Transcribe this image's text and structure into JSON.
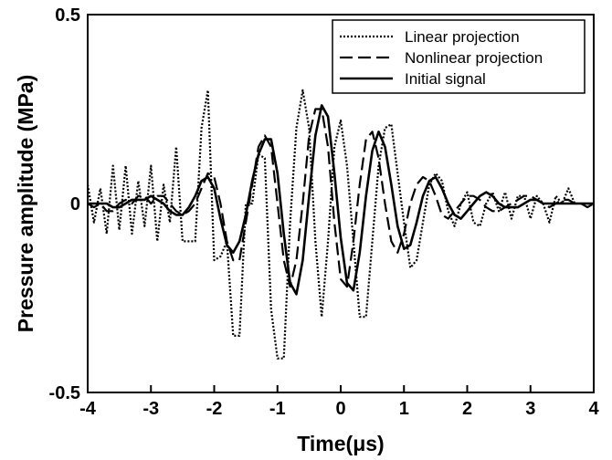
{
  "chart_data": {
    "type": "line",
    "title": "",
    "xlabel": "Time(μs)",
    "ylabel": "Pressure amplitude (MPa)",
    "xlim": [
      -4,
      4
    ],
    "ylim": [
      -0.5,
      0.5
    ],
    "x_ticks": [
      "-4",
      "-3",
      "-2",
      "-1",
      "0",
      "1",
      "2",
      "3",
      "4"
    ],
    "y_ticks": [
      "-0.5",
      "0",
      "0.5"
    ],
    "grid": false,
    "legend_position": "top-right",
    "series": [
      {
        "name": "Linear projection",
        "style": "dotted",
        "color": "#000000",
        "x": [
          -4.0,
          -3.9,
          -3.8,
          -3.7,
          -3.6,
          -3.5,
          -3.4,
          -3.3,
          -3.2,
          -3.1,
          -3.0,
          -2.9,
          -2.8,
          -2.7,
          -2.6,
          -2.5,
          -2.4,
          -2.3,
          -2.2,
          -2.1,
          -2.0,
          -1.9,
          -1.8,
          -1.7,
          -1.6,
          -1.5,
          -1.4,
          -1.3,
          -1.2,
          -1.1,
          -1.0,
          -0.9,
          -0.8,
          -0.7,
          -0.6,
          -0.5,
          -0.4,
          -0.3,
          -0.2,
          -0.1,
          0.0,
          0.1,
          0.2,
          0.3,
          0.4,
          0.5,
          0.6,
          0.7,
          0.8,
          0.9,
          1.0,
          1.1,
          1.2,
          1.3,
          1.4,
          1.5,
          1.6,
          1.7,
          1.8,
          1.9,
          2.0,
          2.1,
          2.2,
          2.3,
          2.4,
          2.5,
          2.6,
          2.7,
          2.8,
          2.9,
          3.0,
          3.1,
          3.2,
          3.3,
          3.4,
          3.5,
          3.6,
          3.7,
          3.8,
          3.9,
          4.0
        ],
        "y": [
          0.05,
          -0.05,
          0.04,
          -0.08,
          0.1,
          -0.07,
          0.1,
          -0.08,
          0.06,
          -0.06,
          0.1,
          -0.1,
          0.05,
          -0.05,
          0.15,
          -0.1,
          -0.1,
          -0.1,
          0.2,
          0.3,
          -0.15,
          -0.14,
          -0.1,
          -0.35,
          -0.35,
          0.0,
          0.0,
          0.13,
          0.12,
          -0.28,
          -0.41,
          -0.41,
          -0.05,
          0.2,
          0.3,
          0.2,
          -0.1,
          -0.3,
          -0.1,
          0.15,
          0.22,
          0.1,
          -0.1,
          -0.3,
          -0.3,
          -0.1,
          0.1,
          0.2,
          0.21,
          0.08,
          -0.05,
          -0.17,
          -0.15,
          -0.05,
          0.05,
          0.08,
          0.06,
          -0.02,
          -0.06,
          0.0,
          0.03,
          -0.05,
          -0.06,
          0.0,
          0.03,
          -0.02,
          0.03,
          -0.04,
          0.02,
          0.02,
          -0.04,
          0.02,
          0.0,
          -0.05,
          0.02,
          0.0,
          0.04,
          0.0,
          0.0,
          0.0,
          0.0
        ]
      },
      {
        "name": "Nonlinear projection",
        "style": "dashed",
        "color": "#000000",
        "x": [
          -4.0,
          -3.9,
          -3.8,
          -3.7,
          -3.6,
          -3.5,
          -3.4,
          -3.3,
          -3.2,
          -3.1,
          -3.0,
          -2.9,
          -2.8,
          -2.7,
          -2.6,
          -2.5,
          -2.4,
          -2.3,
          -2.2,
          -2.1,
          -2.0,
          -1.9,
          -1.8,
          -1.7,
          -1.6,
          -1.5,
          -1.4,
          -1.3,
          -1.2,
          -1.1,
          -1.0,
          -0.9,
          -0.8,
          -0.7,
          -0.6,
          -0.5,
          -0.4,
          -0.3,
          -0.2,
          -0.1,
          0.0,
          0.1,
          0.2,
          0.3,
          0.4,
          0.5,
          0.6,
          0.7,
          0.8,
          0.9,
          1.0,
          1.1,
          1.2,
          1.3,
          1.4,
          1.5,
          1.6,
          1.7,
          1.8,
          1.9,
          2.0,
          2.1,
          2.2,
          2.3,
          2.4,
          2.5,
          2.6,
          2.7,
          2.8,
          2.9,
          3.0,
          3.1,
          3.2,
          3.3,
          3.4,
          3.5,
          3.6,
          3.7,
          3.8,
          3.9,
          4.0
        ],
        "y": [
          0.0,
          -0.01,
          0.0,
          -0.02,
          -0.02,
          0.0,
          0.01,
          0.0,
          0.02,
          0.02,
          0.0,
          0.02,
          0.02,
          0.0,
          -0.02,
          -0.03,
          -0.02,
          0.0,
          0.04,
          0.08,
          0.07,
          0.0,
          -0.1,
          -0.15,
          -0.15,
          -0.05,
          0.05,
          0.15,
          0.18,
          0.15,
          0.0,
          -0.15,
          -0.22,
          -0.15,
          0.0,
          0.18,
          0.25,
          0.25,
          0.15,
          -0.05,
          -0.2,
          -0.22,
          -0.1,
          0.05,
          0.17,
          0.19,
          0.12,
          0.0,
          -0.1,
          -0.13,
          -0.08,
          0.0,
          0.05,
          0.07,
          0.06,
          0.02,
          -0.03,
          -0.04,
          -0.02,
          0.0,
          0.02,
          0.02,
          0.01,
          -0.01,
          -0.02,
          -0.02,
          -0.01,
          0.0,
          0.01,
          0.02,
          0.02,
          0.01,
          0.0,
          -0.01,
          0.0,
          0.01,
          0.01,
          0.0,
          0.0,
          -0.01,
          0.0
        ]
      },
      {
        "name": "Initial signal",
        "style": "solid",
        "color": "#000000",
        "x": [
          -4.0,
          -3.9,
          -3.8,
          -3.7,
          -3.6,
          -3.5,
          -3.4,
          -3.3,
          -3.2,
          -3.1,
          -3.0,
          -2.9,
          -2.8,
          -2.7,
          -2.6,
          -2.5,
          -2.4,
          -2.3,
          -2.2,
          -2.1,
          -2.0,
          -1.9,
          -1.8,
          -1.7,
          -1.6,
          -1.5,
          -1.4,
          -1.3,
          -1.2,
          -1.1,
          -1.0,
          -0.9,
          -0.8,
          -0.7,
          -0.6,
          -0.5,
          -0.4,
          -0.3,
          -0.2,
          -0.1,
          0.0,
          0.1,
          0.2,
          0.3,
          0.4,
          0.5,
          0.6,
          0.7,
          0.8,
          0.9,
          1.0,
          1.1,
          1.2,
          1.3,
          1.4,
          1.5,
          1.6,
          1.7,
          1.8,
          1.9,
          2.0,
          2.1,
          2.2,
          2.3,
          2.4,
          2.5,
          2.6,
          2.7,
          2.8,
          2.9,
          3.0,
          3.1,
          3.2,
          3.3,
          3.4,
          3.5,
          3.6,
          3.7,
          3.8,
          3.9,
          4.0
        ],
        "y": [
          0.0,
          0.0,
          0.0,
          0.0,
          -0.01,
          -0.01,
          0.0,
          0.01,
          0.01,
          0.01,
          0.02,
          0.01,
          0.0,
          -0.02,
          -0.03,
          -0.03,
          -0.01,
          0.02,
          0.06,
          0.07,
          0.04,
          -0.04,
          -0.11,
          -0.13,
          -0.1,
          -0.03,
          0.06,
          0.13,
          0.17,
          0.17,
          0.08,
          -0.08,
          -0.21,
          -0.24,
          -0.15,
          0.02,
          0.18,
          0.26,
          0.23,
          0.08,
          -0.09,
          -0.21,
          -0.23,
          -0.13,
          0.02,
          0.14,
          0.19,
          0.15,
          0.05,
          -0.06,
          -0.12,
          -0.11,
          -0.05,
          0.02,
          0.06,
          0.07,
          0.04,
          0.0,
          -0.03,
          -0.04,
          -0.02,
          0.0,
          0.02,
          0.03,
          0.02,
          0.0,
          -0.01,
          -0.01,
          -0.01,
          0.0,
          0.01,
          0.01,
          0.0,
          0.0,
          0.0,
          0.0,
          0.0,
          0.0,
          0.0,
          0.0,
          0.0
        ]
      }
    ]
  }
}
